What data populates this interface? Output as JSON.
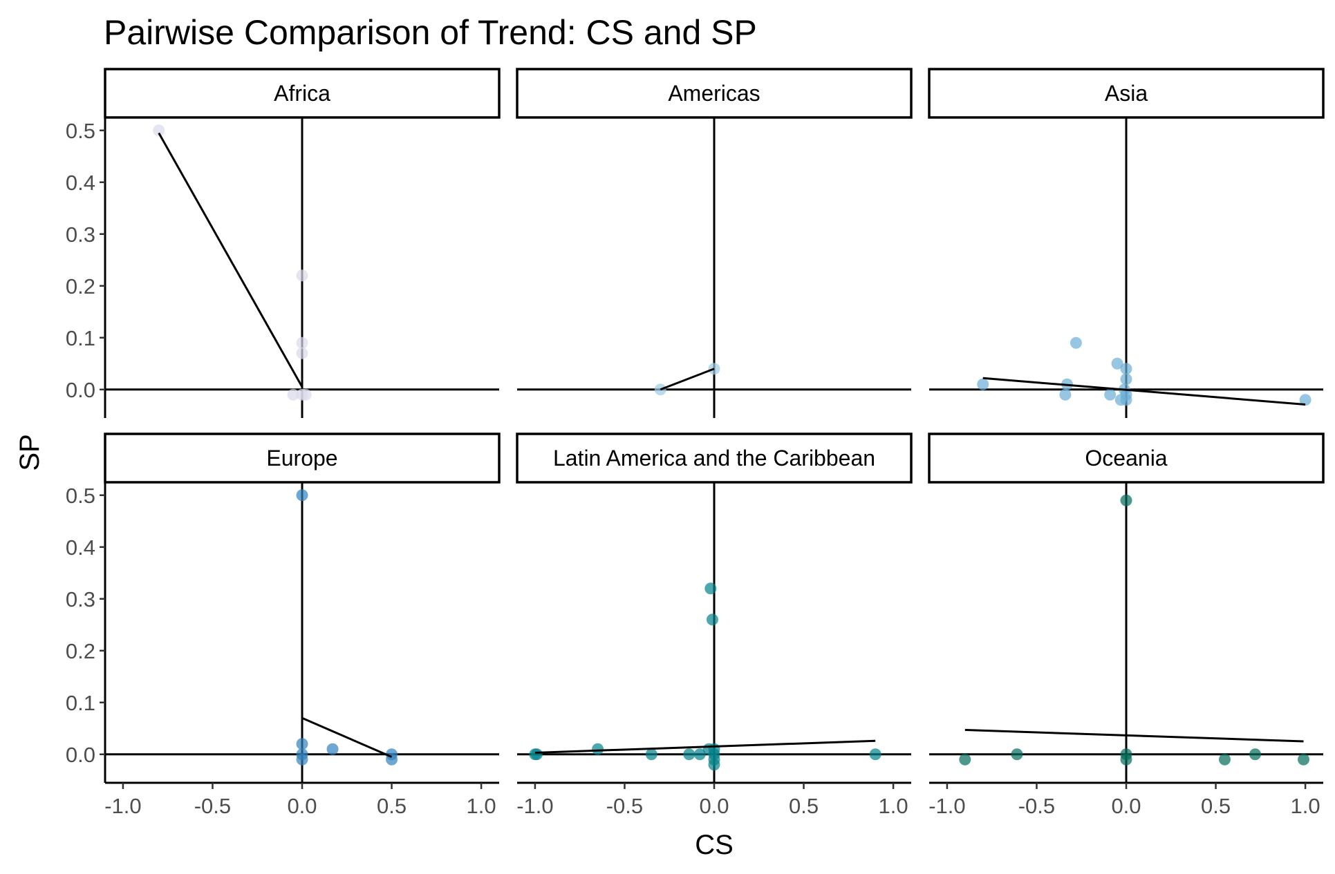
{
  "chart_data": {
    "type": "scatter",
    "title": "Pairwise Comparison of Trend: CS and SP",
    "xlabel": "CS",
    "ylabel": "SP",
    "xlim": [
      -1.1,
      1.1
    ],
    "ylim": [
      -0.055,
      0.525
    ],
    "x_ticks": [
      -1.0,
      -0.5,
      0.0,
      0.5,
      1.0
    ],
    "x_tick_labels": [
      "-1.0",
      "-0.5",
      "0.0",
      "0.5",
      "1.0"
    ],
    "y_ticks": [
      0.0,
      0.1,
      0.2,
      0.3,
      0.4,
      0.5
    ],
    "y_tick_labels": [
      "0.0",
      "0.1",
      "0.2",
      "0.3",
      "0.4",
      "0.5"
    ],
    "grid": false,
    "reference_lines": {
      "x": 0,
      "y": 0
    },
    "panels": [
      {
        "name": "Africa",
        "color": "#dadaeb",
        "points": [
          [
            -0.8,
            0.5
          ],
          [
            0.0,
            0.22
          ],
          [
            0.0,
            0.09
          ],
          [
            0.0,
            0.07
          ],
          [
            -0.05,
            -0.01
          ],
          [
            0.0,
            -0.01
          ],
          [
            0.02,
            -0.01
          ]
        ],
        "trend": [
          [
            -0.8,
            0.495
          ],
          [
            0.0,
            0.005
          ]
        ]
      },
      {
        "name": "Americas",
        "color": "#9ecae1",
        "points": [
          [
            -0.3,
            0.0
          ],
          [
            0.0,
            0.04
          ]
        ],
        "trend": [
          [
            -0.3,
            0.0
          ],
          [
            0.0,
            0.04
          ]
        ]
      },
      {
        "name": "Asia",
        "color": "#6baed6",
        "points": [
          [
            -0.8,
            0.01
          ],
          [
            -0.28,
            0.09
          ],
          [
            -0.05,
            0.05
          ],
          [
            0.0,
            0.04
          ],
          [
            0.0,
            0.02
          ],
          [
            -0.33,
            0.01
          ],
          [
            -0.34,
            -0.01
          ],
          [
            -0.09,
            -0.01
          ],
          [
            -0.03,
            -0.02
          ],
          [
            0.0,
            -0.01
          ],
          [
            0.0,
            -0.02
          ],
          [
            -0.01,
            0.0
          ],
          [
            1.0,
            -0.02
          ]
        ],
        "trend": [
          [
            -0.8,
            0.022
          ],
          [
            1.0,
            -0.029
          ]
        ]
      },
      {
        "name": "Europe",
        "color": "#3182bd",
        "points": [
          [
            0.0,
            0.5
          ],
          [
            0.0,
            0.02
          ],
          [
            0.0,
            0.0
          ],
          [
            0.0,
            -0.01
          ],
          [
            0.17,
            0.01
          ],
          [
            0.5,
            0.0
          ],
          [
            0.5,
            -0.01
          ]
        ],
        "trend": [
          [
            0.0,
            0.07
          ],
          [
            0.5,
            -0.005
          ]
        ]
      },
      {
        "name": "Latin America and the Caribbean",
        "color": "#02818a",
        "points": [
          [
            -1.0,
            0.0
          ],
          [
            -0.99,
            0.0
          ],
          [
            -0.65,
            0.01
          ],
          [
            -0.35,
            0.0
          ],
          [
            -0.14,
            0.0
          ],
          [
            -0.08,
            0.0
          ],
          [
            -0.02,
            0.32
          ],
          [
            -0.01,
            0.26
          ],
          [
            -0.03,
            0.01
          ],
          [
            0.0,
            0.01
          ],
          [
            0.0,
            0.0
          ],
          [
            0.0,
            -0.01
          ],
          [
            0.0,
            -0.02
          ],
          [
            0.9,
            0.0
          ]
        ],
        "trend": [
          [
            -1.0,
            0.003
          ],
          [
            0.9,
            0.026
          ]
        ]
      },
      {
        "name": "Oceania",
        "color": "#016c59",
        "points": [
          [
            -0.9,
            -0.01
          ],
          [
            -0.61,
            0.0
          ],
          [
            0.0,
            0.49
          ],
          [
            0.0,
            0.0
          ],
          [
            0.0,
            -0.01
          ],
          [
            0.55,
            -0.01
          ],
          [
            0.72,
            0.0
          ],
          [
            0.99,
            -0.01
          ]
        ],
        "trend": [
          [
            -0.9,
            0.047
          ],
          [
            0.99,
            0.025
          ]
        ]
      }
    ]
  }
}
